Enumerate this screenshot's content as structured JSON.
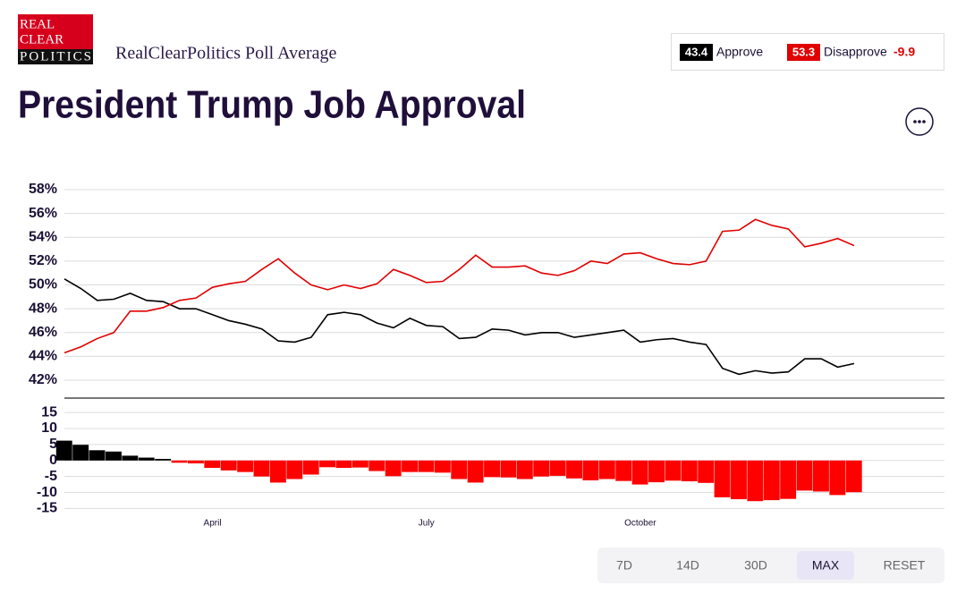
{
  "header": {
    "logo": [
      "REAL",
      "CLEAR",
      "POLITICS"
    ],
    "subtitle": "RealClearPolitics Poll Average"
  },
  "buttons": [
    "7D",
    "14D",
    "30D",
    "MAX",
    "RESET"
  ],
  "chart_data": [
    {
      "type": "line",
      "title": "President Trump Job Approval",
      "legend_values": [
        43.4,
        53.3
      ],
      "spread": -9.9,
      "ylim": [
        40.5,
        58
      ],
      "yticks": [
        {
          "value": 42,
          "label": "42%"
        },
        {
          "value": 44,
          "label": "44%"
        },
        {
          "value": 46,
          "label": "46%"
        },
        {
          "value": 48,
          "label": "48%"
        },
        {
          "value": 50,
          "label": "50%"
        },
        {
          "value": 52,
          "label": "52%"
        },
        {
          "value": 54,
          "label": "54%"
        },
        {
          "value": 56,
          "label": "56%"
        },
        {
          "value": 58,
          "label": "58%"
        }
      ],
      "grid": true,
      "series": [
        {
          "name": "Approve",
          "color": "#000000",
          "values": [
            50.5,
            49.7,
            48.7,
            48.8,
            49.3,
            48.7,
            48.6,
            48.0,
            48.0,
            47.5,
            47.0,
            46.7,
            46.3,
            45.3,
            45.2,
            45.6,
            47.5,
            47.7,
            47.5,
            46.8,
            46.4,
            47.2,
            46.6,
            46.5,
            45.5,
            45.6,
            46.3,
            46.2,
            45.8,
            46.0,
            46.0,
            45.6,
            45.8,
            46.0,
            46.2,
            45.2,
            45.4,
            45.5,
            45.2,
            45.0,
            43.0,
            42.5,
            42.8,
            42.6,
            42.7,
            43.8,
            43.8,
            43.1,
            43.4
          ]
        },
        {
          "name": "Disapprove",
          "color": "#e00000",
          "values": [
            44.3,
            44.8,
            45.5,
            46.0,
            47.8,
            47.8,
            48.1,
            48.7,
            48.9,
            49.8,
            50.1,
            50.3,
            51.3,
            52.2,
            51.0,
            50.0,
            49.6,
            50.0,
            49.7,
            50.1,
            51.3,
            50.8,
            50.2,
            50.3,
            51.3,
            52.5,
            51.5,
            51.5,
            51.6,
            51.0,
            50.8,
            51.2,
            52.0,
            51.8,
            52.6,
            52.7,
            52.2,
            51.8,
            51.7,
            52.0,
            54.5,
            54.6,
            55.5,
            55.0,
            54.7,
            53.2,
            53.5,
            53.9,
            53.3
          ]
        }
      ]
    },
    {
      "type": "bar",
      "categories": [
        null,
        null,
        null,
        null,
        null,
        null,
        null,
        null,
        null,
        "April",
        null,
        null,
        null,
        null,
        null,
        null,
        null,
        null,
        null,
        null,
        null,
        null,
        "July",
        null,
        null,
        null,
        null,
        null,
        null,
        null,
        null,
        null,
        null,
        null,
        null,
        "October",
        null,
        null,
        null,
        null,
        null,
        null,
        null,
        null,
        null,
        null,
        null,
        null,
        null
      ],
      "values": [
        6.2,
        4.9,
        3.2,
        2.8,
        1.5,
        0.9,
        0.5,
        -0.7,
        -0.9,
        -2.3,
        -3.1,
        -3.6,
        -5.0,
        -6.9,
        -5.8,
        -4.4,
        -2.1,
        -2.3,
        -2.2,
        -3.3,
        -4.9,
        -3.6,
        -3.6,
        -3.8,
        -5.8,
        -6.9,
        -5.2,
        -5.3,
        -5.8,
        -5.0,
        -4.8,
        -5.6,
        -6.2,
        -5.8,
        -6.4,
        -7.5,
        -6.8,
        -6.3,
        -6.5,
        -7.0,
        -11.5,
        -12.1,
        -12.7,
        -12.4,
        -12.0,
        -9.4,
        -9.7,
        -10.8,
        -9.9
      ],
      "positive_color": "#000000",
      "negative_color": "#ff0000",
      "ylim": [
        -16,
        19.5
      ],
      "yticks": [
        15,
        10,
        5,
        0,
        -5,
        -10,
        -15
      ],
      "grid": true
    }
  ]
}
